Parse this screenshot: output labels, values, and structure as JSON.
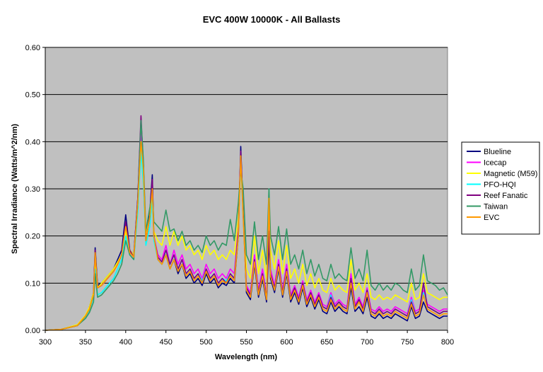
{
  "chart_data": {
    "type": "line",
    "title": "EVC 400W 10000K - All Ballasts",
    "xlabel": "Wavelength (nm)",
    "ylabel": "Spectral Irradiance (Watts/m^2/nm)",
    "xlim": [
      300,
      800
    ],
    "ylim": [
      0,
      0.6
    ],
    "x_ticks": [
      "300",
      "350",
      "400",
      "450",
      "500",
      "550",
      "600",
      "650",
      "700",
      "750",
      "800"
    ],
    "y_ticks": [
      "0.00",
      "0.10",
      "0.20",
      "0.30",
      "0.40",
      "0.50",
      "0.60"
    ],
    "grid": "horizontal",
    "plot_background": "#c0c0c0",
    "legend_position": "right",
    "x": [
      300,
      320,
      340,
      350,
      355,
      360,
      362,
      365,
      370,
      375,
      380,
      385,
      390,
      395,
      400,
      405,
      410,
      415,
      419,
      422,
      425,
      430,
      433,
      435,
      440,
      445,
      450,
      455,
      460,
      465,
      470,
      475,
      480,
      485,
      490,
      495,
      500,
      505,
      510,
      515,
      520,
      525,
      530,
      535,
      540,
      543,
      546,
      550,
      555,
      560,
      565,
      570,
      575,
      578,
      580,
      585,
      590,
      595,
      600,
      605,
      610,
      615,
      620,
      625,
      630,
      635,
      640,
      645,
      650,
      655,
      660,
      665,
      670,
      675,
      680,
      685,
      690,
      695,
      700,
      705,
      710,
      715,
      720,
      725,
      730,
      735,
      740,
      745,
      750,
      755,
      760,
      765,
      770,
      775,
      780,
      785,
      790,
      795,
      800
    ],
    "series": [
      {
        "name": "Blueline",
        "color": "#000080",
        "values": [
          0,
          0.002,
          0.01,
          0.03,
          0.05,
          0.08,
          0.175,
          0.095,
          0.1,
          0.11,
          0.12,
          0.13,
          0.15,
          0.17,
          0.245,
          0.17,
          0.16,
          0.28,
          0.44,
          0.35,
          0.19,
          0.25,
          0.33,
          0.2,
          0.15,
          0.14,
          0.16,
          0.13,
          0.15,
          0.12,
          0.14,
          0.11,
          0.12,
          0.1,
          0.11,
          0.095,
          0.12,
          0.1,
          0.11,
          0.09,
          0.1,
          0.095,
          0.11,
          0.1,
          0.2,
          0.39,
          0.25,
          0.08,
          0.065,
          0.14,
          0.07,
          0.11,
          0.06,
          0.19,
          0.11,
          0.08,
          0.13,
          0.07,
          0.12,
          0.06,
          0.08,
          0.055,
          0.09,
          0.05,
          0.07,
          0.045,
          0.065,
          0.04,
          0.035,
          0.06,
          0.04,
          0.05,
          0.04,
          0.035,
          0.09,
          0.04,
          0.05,
          0.035,
          0.07,
          0.03,
          0.025,
          0.035,
          0.025,
          0.03,
          0.025,
          0.035,
          0.03,
          0.025,
          0.02,
          0.05,
          0.025,
          0.03,
          0.06,
          0.04,
          0.035,
          0.03,
          0.025,
          0.03,
          0.03
        ]
      },
      {
        "name": "Icecap",
        "color": "#ff00ff",
        "values": [
          0,
          0.002,
          0.01,
          0.03,
          0.045,
          0.075,
          0.16,
          0.09,
          0.095,
          0.105,
          0.115,
          0.125,
          0.14,
          0.16,
          0.225,
          0.165,
          0.155,
          0.27,
          0.42,
          0.34,
          0.19,
          0.24,
          0.31,
          0.2,
          0.16,
          0.15,
          0.18,
          0.14,
          0.17,
          0.14,
          0.16,
          0.13,
          0.14,
          0.12,
          0.13,
          0.11,
          0.14,
          0.12,
          0.13,
          0.11,
          0.12,
          0.11,
          0.13,
          0.12,
          0.22,
          0.37,
          0.25,
          0.095,
          0.08,
          0.16,
          0.085,
          0.13,
          0.075,
          0.22,
          0.13,
          0.095,
          0.15,
          0.085,
          0.14,
          0.075,
          0.095,
          0.07,
          0.105,
          0.065,
          0.085,
          0.06,
          0.08,
          0.055,
          0.05,
          0.08,
          0.055,
          0.065,
          0.055,
          0.05,
          0.12,
          0.055,
          0.07,
          0.05,
          0.09,
          0.045,
          0.04,
          0.05,
          0.04,
          0.045,
          0.04,
          0.05,
          0.045,
          0.04,
          0.035,
          0.07,
          0.04,
          0.045,
          0.085,
          0.055,
          0.05,
          0.045,
          0.04,
          0.045,
          0.045
        ]
      },
      {
        "name": "Magnetic (M59)",
        "color": "#ffff00",
        "values": [
          0,
          0.002,
          0.012,
          0.032,
          0.05,
          0.08,
          0.15,
          0.09,
          0.1,
          0.11,
          0.12,
          0.13,
          0.145,
          0.16,
          0.21,
          0.17,
          0.16,
          0.26,
          0.4,
          0.33,
          0.2,
          0.24,
          0.3,
          0.21,
          0.19,
          0.18,
          0.22,
          0.18,
          0.21,
          0.18,
          0.2,
          0.17,
          0.18,
          0.16,
          0.17,
          0.15,
          0.18,
          0.16,
          0.17,
          0.15,
          0.16,
          0.15,
          0.17,
          0.16,
          0.24,
          0.35,
          0.27,
          0.13,
          0.11,
          0.2,
          0.12,
          0.17,
          0.11,
          0.26,
          0.17,
          0.13,
          0.19,
          0.12,
          0.18,
          0.11,
          0.13,
          0.1,
          0.14,
          0.095,
          0.12,
          0.09,
          0.11,
          0.085,
          0.08,
          0.11,
          0.085,
          0.095,
          0.085,
          0.08,
          0.15,
          0.085,
          0.1,
          0.08,
          0.12,
          0.07,
          0.065,
          0.075,
          0.065,
          0.07,
          0.065,
          0.075,
          0.07,
          0.065,
          0.06,
          0.1,
          0.065,
          0.07,
          0.12,
          0.08,
          0.075,
          0.07,
          0.065,
          0.07,
          0.07
        ]
      },
      {
        "name": "PFO-HQI",
        "color": "#00ffff",
        "values": [
          0,
          0.002,
          0.01,
          0.028,
          0.042,
          0.07,
          0.13,
          0.075,
          0.08,
          0.09,
          0.1,
          0.11,
          0.13,
          0.15,
          0.2,
          0.16,
          0.15,
          0.25,
          0.38,
          0.31,
          0.18,
          0.22,
          0.28,
          0.19,
          0.15,
          0.14,
          0.17,
          0.14,
          0.16,
          0.13,
          0.15,
          0.12,
          0.13,
          0.11,
          0.12,
          0.105,
          0.13,
          0.11,
          0.12,
          0.1,
          0.11,
          0.105,
          0.12,
          0.11,
          0.21,
          0.36,
          0.24,
          0.09,
          0.075,
          0.15,
          0.08,
          0.12,
          0.07,
          0.3,
          0.12,
          0.09,
          0.14,
          0.08,
          0.13,
          0.07,
          0.09,
          0.065,
          0.1,
          0.06,
          0.08,
          0.055,
          0.075,
          0.05,
          0.045,
          0.075,
          0.05,
          0.06,
          0.05,
          0.045,
          0.11,
          0.05,
          0.065,
          0.045,
          0.085,
          0.04,
          0.035,
          0.045,
          0.035,
          0.04,
          0.035,
          0.045,
          0.04,
          0.035,
          0.03,
          0.065,
          0.035,
          0.04,
          0.08,
          0.05,
          0.045,
          0.04,
          0.035,
          0.04,
          0.04
        ]
      },
      {
        "name": "Reef Fanatic",
        "color": "#800080",
        "values": [
          0,
          0.002,
          0.01,
          0.03,
          0.045,
          0.075,
          0.17,
          0.09,
          0.095,
          0.105,
          0.115,
          0.125,
          0.14,
          0.16,
          0.23,
          0.17,
          0.155,
          0.28,
          0.455,
          0.35,
          0.19,
          0.24,
          0.32,
          0.2,
          0.155,
          0.145,
          0.17,
          0.14,
          0.16,
          0.13,
          0.15,
          0.12,
          0.13,
          0.11,
          0.12,
          0.1,
          0.13,
          0.11,
          0.12,
          0.1,
          0.11,
          0.1,
          0.12,
          0.11,
          0.21,
          0.38,
          0.25,
          0.09,
          0.075,
          0.15,
          0.08,
          0.12,
          0.07,
          0.21,
          0.12,
          0.09,
          0.14,
          0.08,
          0.13,
          0.07,
          0.09,
          0.065,
          0.1,
          0.06,
          0.08,
          0.055,
          0.075,
          0.05,
          0.045,
          0.07,
          0.05,
          0.06,
          0.05,
          0.045,
          0.11,
          0.05,
          0.065,
          0.045,
          0.085,
          0.04,
          0.035,
          0.045,
          0.035,
          0.04,
          0.035,
          0.045,
          0.04,
          0.035,
          0.03,
          0.06,
          0.035,
          0.04,
          0.1,
          0.05,
          0.045,
          0.04,
          0.035,
          0.04,
          0.04
        ]
      },
      {
        "name": "Taiwan",
        "color": "#339966",
        "values": [
          0,
          0.002,
          0.01,
          0.025,
          0.038,
          0.06,
          0.12,
          0.07,
          0.075,
          0.085,
          0.095,
          0.105,
          0.12,
          0.14,
          0.19,
          0.16,
          0.15,
          0.27,
          0.445,
          0.36,
          0.21,
          0.26,
          0.29,
          0.23,
          0.22,
          0.21,
          0.255,
          0.21,
          0.215,
          0.19,
          0.21,
          0.18,
          0.19,
          0.17,
          0.18,
          0.165,
          0.2,
          0.18,
          0.19,
          0.17,
          0.185,
          0.18,
          0.235,
          0.19,
          0.27,
          0.34,
          0.3,
          0.16,
          0.14,
          0.23,
          0.15,
          0.2,
          0.14,
          0.3,
          0.2,
          0.16,
          0.22,
          0.15,
          0.215,
          0.14,
          0.16,
          0.13,
          0.17,
          0.12,
          0.15,
          0.115,
          0.14,
          0.11,
          0.105,
          0.14,
          0.11,
          0.12,
          0.11,
          0.105,
          0.175,
          0.11,
          0.13,
          0.105,
          0.17,
          0.095,
          0.085,
          0.1,
          0.085,
          0.095,
          0.085,
          0.1,
          0.095,
          0.085,
          0.08,
          0.13,
          0.085,
          0.095,
          0.16,
          0.105,
          0.1,
          0.095,
          0.085,
          0.09,
          0.075
        ]
      },
      {
        "name": "EVC",
        "color": "#ff9900",
        "values": [
          0,
          0.002,
          0.01,
          0.03,
          0.045,
          0.075,
          0.165,
          0.09,
          0.095,
          0.105,
          0.115,
          0.125,
          0.14,
          0.16,
          0.22,
          0.165,
          0.155,
          0.27,
          0.4,
          0.34,
          0.19,
          0.24,
          0.3,
          0.2,
          0.15,
          0.14,
          0.16,
          0.13,
          0.15,
          0.125,
          0.14,
          0.115,
          0.125,
          0.105,
          0.115,
          0.1,
          0.125,
          0.105,
          0.115,
          0.095,
          0.105,
          0.1,
          0.115,
          0.105,
          0.2,
          0.37,
          0.24,
          0.085,
          0.07,
          0.145,
          0.075,
          0.115,
          0.065,
          0.28,
          0.115,
          0.085,
          0.135,
          0.075,
          0.125,
          0.065,
          0.085,
          0.06,
          0.095,
          0.055,
          0.075,
          0.05,
          0.07,
          0.045,
          0.04,
          0.065,
          0.045,
          0.055,
          0.045,
          0.04,
          0.1,
          0.045,
          0.06,
          0.04,
          0.08,
          0.035,
          0.03,
          0.04,
          0.03,
          0.035,
          0.03,
          0.04,
          0.035,
          0.03,
          0.025,
          0.055,
          0.03,
          0.035,
          0.075,
          0.045,
          0.04,
          0.035,
          0.03,
          0.035,
          0.035
        ]
      }
    ]
  }
}
